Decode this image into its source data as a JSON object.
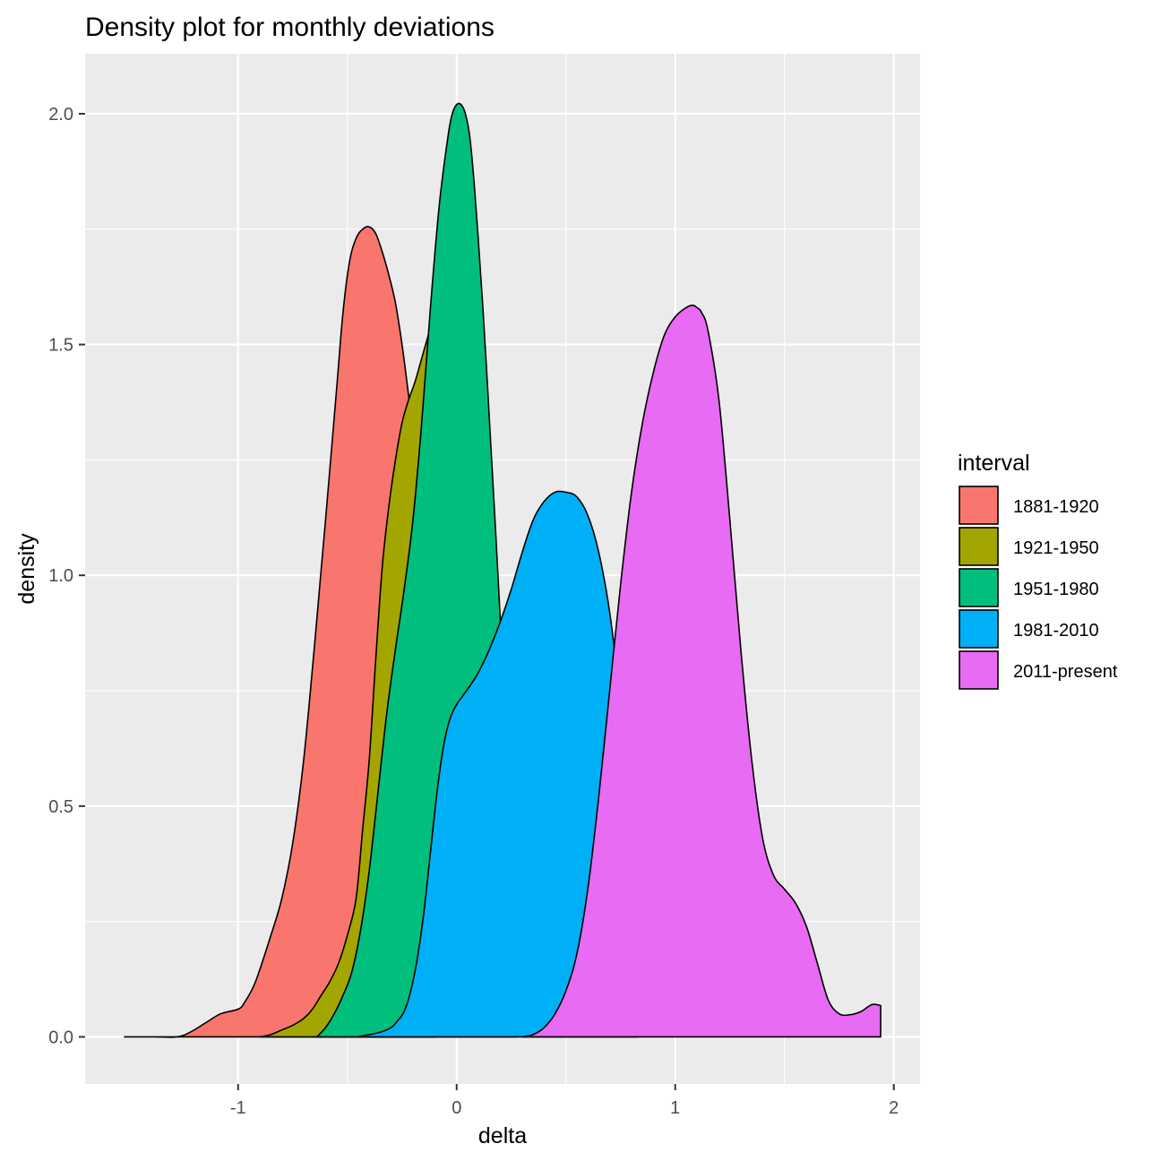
{
  "chart_data": {
    "type": "area",
    "subtype": "density",
    "title": "Density plot for monthly deviations",
    "xlabel": "delta",
    "ylabel": "density",
    "xlim": [
      -1.7,
      2.12
    ],
    "ylim": [
      -0.102,
      2.13
    ],
    "x_ticks": [
      -1,
      0,
      1,
      2
    ],
    "y_ticks": [
      0.0,
      0.5,
      1.0,
      1.5,
      2.0
    ],
    "x_tick_labels": [
      "-1",
      "0",
      "1",
      "2"
    ],
    "y_tick_labels": [
      "0.0",
      "0.5",
      "1.0",
      "1.5",
      "2.0"
    ],
    "grid": true,
    "legend": {
      "title": "interval",
      "position": "right",
      "entries": [
        "1881-1920",
        "1921-1950",
        "1951-1980",
        "1981-2010",
        "2011-present"
      ]
    },
    "series": [
      {
        "name": "1881-1920",
        "color": "#F8766D",
        "x": [
          -1.52,
          -1.45,
          -1.38,
          -1.28,
          -1.22,
          -1.15,
          -1.08,
          -1.0,
          -0.97,
          -0.92,
          -0.85,
          -0.8,
          -0.75,
          -0.7,
          -0.65,
          -0.6,
          -0.55,
          -0.52,
          -0.49,
          -0.46,
          -0.43,
          -0.4,
          -0.37,
          -0.34,
          -0.31,
          -0.28,
          -0.25,
          -0.22,
          -0.19,
          -0.17,
          -0.15,
          -0.13,
          -0.11,
          -0.1
        ],
        "y": [
          0.0,
          0.0,
          0.0,
          0.0,
          0.01,
          0.03,
          0.05,
          0.06,
          0.075,
          0.12,
          0.22,
          0.3,
          0.42,
          0.6,
          0.85,
          1.12,
          1.4,
          1.57,
          1.68,
          1.73,
          1.75,
          1.755,
          1.74,
          1.7,
          1.65,
          1.59,
          1.5,
          1.39,
          1.27,
          1.17,
          1.05,
          0.9,
          0.7,
          0.6
        ]
      },
      {
        "name": "1921-1950",
        "color": "#A3A500",
        "x": [
          -0.9,
          -0.85,
          -0.8,
          -0.75,
          -0.7,
          -0.66,
          -0.62,
          -0.58,
          -0.54,
          -0.5,
          -0.46,
          -0.43,
          -0.4,
          -0.37,
          -0.34,
          -0.31,
          -0.28,
          -0.25,
          -0.22,
          -0.19,
          -0.16,
          -0.13,
          -0.12,
          -0.1
        ],
        "y": [
          0.0,
          0.005,
          0.015,
          0.025,
          0.04,
          0.06,
          0.09,
          0.12,
          0.16,
          0.22,
          0.3,
          0.45,
          0.6,
          0.82,
          1.02,
          1.15,
          1.25,
          1.33,
          1.38,
          1.42,
          1.47,
          1.52,
          1.54,
          1.45
        ]
      },
      {
        "name": "1951-1980",
        "color": "#00BF7D",
        "x": [
          -0.64,
          -0.6,
          -0.56,
          -0.52,
          -0.48,
          -0.44,
          -0.4,
          -0.36,
          -0.32,
          -0.28,
          -0.24,
          -0.2,
          -0.16,
          -0.12,
          -0.08,
          -0.04,
          -0.02,
          0.0,
          0.02,
          0.04,
          0.06,
          0.08,
          0.1,
          0.12,
          0.14,
          0.16,
          0.18,
          0.2,
          0.22,
          0.24,
          0.26,
          0.28
        ],
        "y": [
          0.0,
          0.02,
          0.05,
          0.09,
          0.14,
          0.23,
          0.36,
          0.53,
          0.7,
          0.84,
          0.97,
          1.12,
          1.33,
          1.58,
          1.8,
          1.95,
          2.0,
          2.02,
          2.02,
          2.0,
          1.95,
          1.85,
          1.72,
          1.58,
          1.42,
          1.25,
          1.08,
          0.9,
          0.7,
          0.5,
          0.3,
          0.12
        ]
      },
      {
        "name": "1981-2010",
        "color": "#00B0F6",
        "x": [
          -0.45,
          -0.4,
          -0.35,
          -0.3,
          -0.27,
          -0.24,
          -0.21,
          -0.18,
          -0.15,
          -0.12,
          -0.09,
          -0.06,
          -0.03,
          0.0,
          0.03,
          0.06,
          0.1,
          0.15,
          0.2,
          0.25,
          0.3,
          0.35,
          0.4,
          0.45,
          0.5,
          0.55,
          0.6,
          0.65,
          0.7,
          0.75,
          0.8,
          0.83
        ],
        "y": [
          0.0,
          0.005,
          0.01,
          0.02,
          0.035,
          0.055,
          0.1,
          0.17,
          0.27,
          0.4,
          0.53,
          0.63,
          0.69,
          0.72,
          0.74,
          0.76,
          0.79,
          0.84,
          0.9,
          0.97,
          1.05,
          1.12,
          1.16,
          1.18,
          1.18,
          1.17,
          1.13,
          1.05,
          0.92,
          0.72,
          0.45,
          0.25
        ]
      },
      {
        "name": "2011-present",
        "color": "#E76BF3",
        "x": [
          0.3,
          0.35,
          0.4,
          0.45,
          0.5,
          0.55,
          0.6,
          0.65,
          0.7,
          0.75,
          0.8,
          0.85,
          0.9,
          0.95,
          1.0,
          1.05,
          1.08,
          1.1,
          1.12,
          1.15,
          1.2,
          1.25,
          1.3,
          1.35,
          1.4,
          1.45,
          1.5,
          1.55,
          1.6,
          1.65,
          1.7,
          1.75,
          1.8,
          1.85,
          1.9,
          1.94
        ],
        "y": [
          0.0,
          0.005,
          0.02,
          0.05,
          0.1,
          0.18,
          0.32,
          0.52,
          0.75,
          0.98,
          1.18,
          1.33,
          1.44,
          1.52,
          1.56,
          1.58,
          1.585,
          1.58,
          1.57,
          1.53,
          1.38,
          1.12,
          0.84,
          0.6,
          0.43,
          0.35,
          0.32,
          0.29,
          0.24,
          0.16,
          0.08,
          0.05,
          0.048,
          0.055,
          0.07,
          0.068
        ]
      }
    ]
  }
}
